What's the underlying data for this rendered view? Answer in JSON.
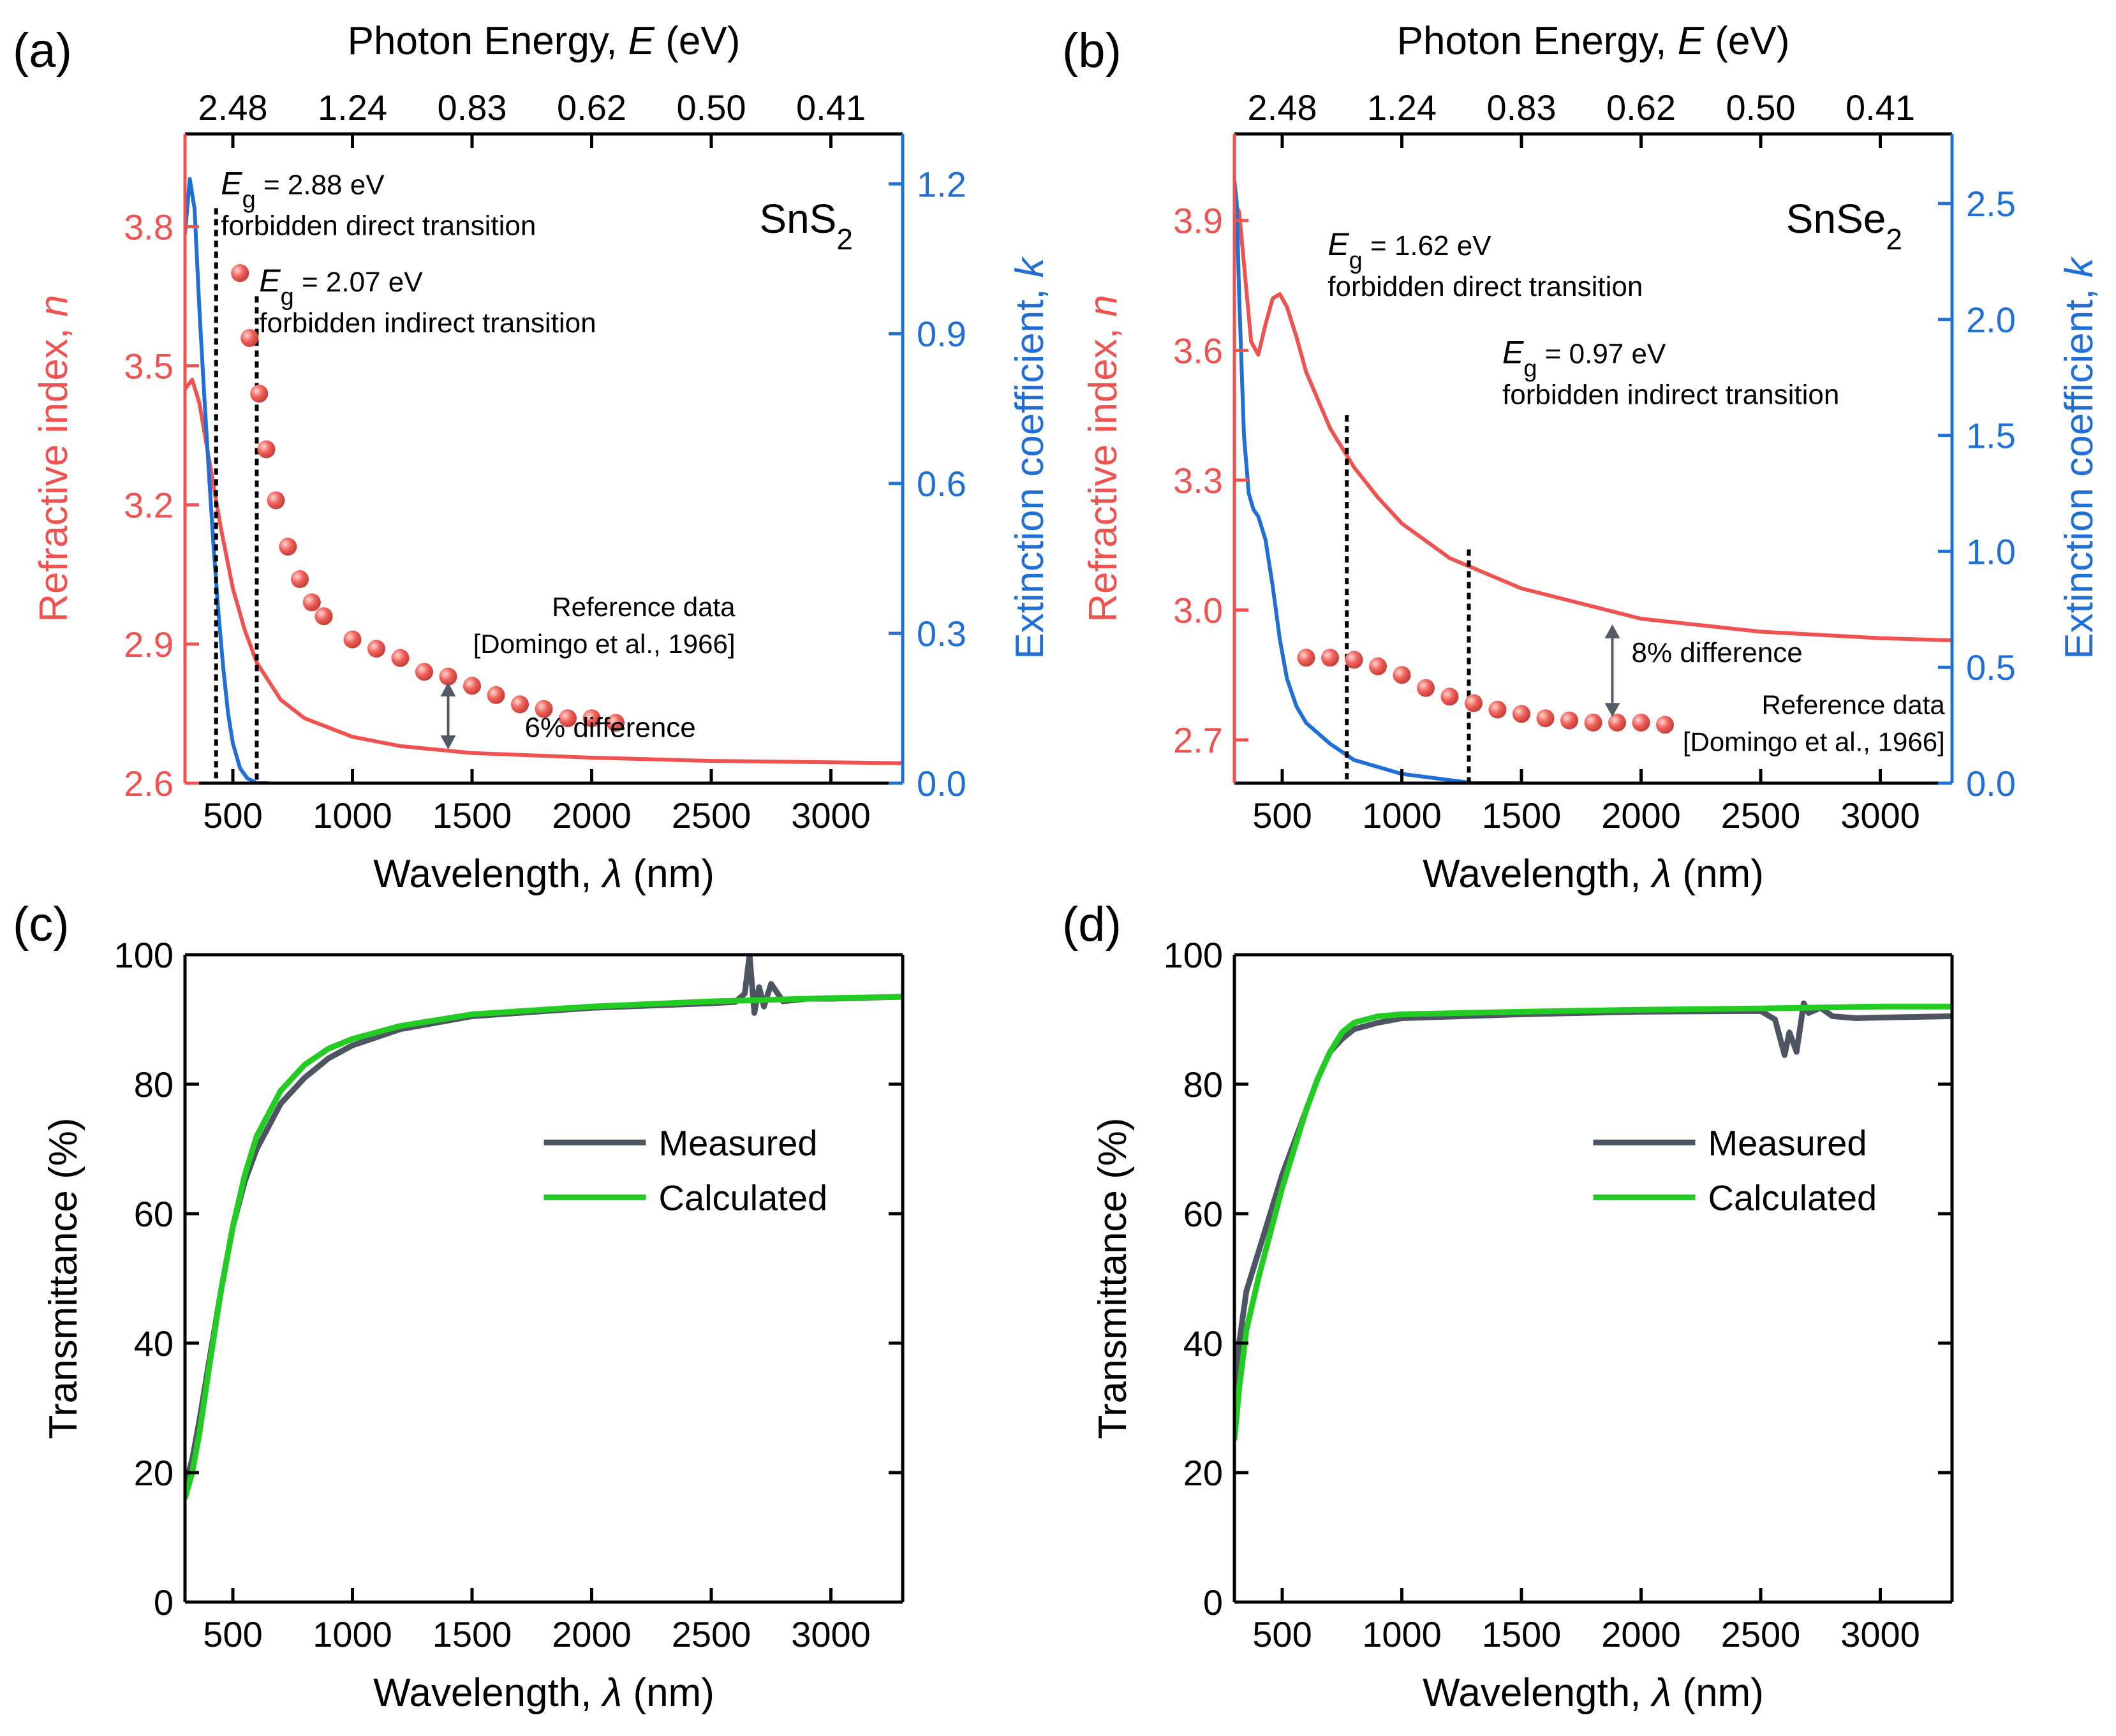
{
  "figure": {
    "colors": {
      "n": "#ef5350",
      "k": "#1f6fd6",
      "points": "#f0605a",
      "measured": "#4d5563",
      "calculated": "#22cc22",
      "axis": "#000000",
      "arrow": "#555a66"
    }
  },
  "chart_data": [
    {
      "panel": "a",
      "panel_label": "(a)",
      "type": "line",
      "material_prefix": "SnS",
      "material_sub": "2",
      "xlabel_prefix": "Wavelength, ",
      "xlabel_symbol": "λ",
      "xlabel_suffix": " (nm)",
      "xlim": [
        300,
        3300
      ],
      "xticks": [
        500,
        1000,
        1500,
        2000,
        2500,
        3000
      ],
      "top_label_prefix": "Photon Energy, ",
      "top_label_symbol": "E",
      "top_label_suffix": " (eV)",
      "top_ticks": [
        {
          "label": "2.48",
          "x": 500
        },
        {
          "label": "1.24",
          "x": 1000
        },
        {
          "label": "0.83",
          "x": 1500
        },
        {
          "label": "0.62",
          "x": 2000
        },
        {
          "label": "0.50",
          "x": 2500
        },
        {
          "label": "0.41",
          "x": 3000
        }
      ],
      "ylabel_left_prefix": "Refractive index, ",
      "ylabel_left_symbol": "n",
      "ylim_left": [
        2.6,
        4.0
      ],
      "yticks_left": [
        2.6,
        2.9,
        3.2,
        3.5,
        3.8
      ],
      "ytick_left_labels": [
        "2.6",
        "2.9",
        "3.2",
        "3.5",
        "3.8"
      ],
      "ylabel_right_prefix": "Extinction coefficient, ",
      "ylabel_right_symbol": "k",
      "ylim_right": [
        0,
        1.3
      ],
      "yticks_right": [
        0,
        0.3,
        0.6,
        0.9,
        1.2
      ],
      "ytick_right_labels": [
        "0.0",
        "0.3",
        "0.6",
        "0.9",
        "1.2"
      ],
      "n_curve": {
        "x": [
          300,
          330,
          360,
          400,
          450,
          500,
          550,
          600,
          700,
          800,
          1000,
          1200,
          1500,
          2000,
          2500,
          3000,
          3300
        ],
        "y": [
          3.45,
          3.47,
          3.42,
          3.3,
          3.15,
          3.02,
          2.93,
          2.86,
          2.78,
          2.74,
          2.7,
          2.68,
          2.665,
          2.655,
          2.648,
          2.645,
          2.643
        ]
      },
      "k_curve": {
        "x": [
          300,
          320,
          340,
          360,
          380,
          400,
          420,
          440,
          460,
          480,
          500,
          530,
          560,
          600,
          650
        ],
        "y": [
          1.1,
          1.21,
          1.15,
          0.95,
          0.78,
          0.62,
          0.47,
          0.34,
          0.23,
          0.14,
          0.08,
          0.03,
          0.01,
          0.0,
          0.0
        ]
      },
      "reference_points": {
        "x": [
          530,
          570,
          610,
          640,
          680,
          730,
          780,
          830,
          880,
          1000,
          1100,
          1200,
          1300,
          1400,
          1500,
          1600,
          1700,
          1800,
          1900,
          2000,
          2100
        ],
        "y": [
          3.7,
          3.56,
          3.44,
          3.32,
          3.21,
          3.11,
          3.04,
          2.99,
          2.96,
          2.91,
          2.89,
          2.87,
          2.84,
          2.83,
          2.81,
          2.79,
          2.77,
          2.76,
          2.74,
          2.74,
          2.73
        ]
      },
      "gap_lines": [
        {
          "x": 430,
          "y_top": 3.84
        },
        {
          "x": 600,
          "y_top": 3.65
        }
      ],
      "annotations": [
        {
          "kind": "eg",
          "value": " = 2.88 eV",
          "line2": "forbidden direct transition",
          "x": 450,
          "y": 3.87
        },
        {
          "kind": "eg",
          "value": " = 2.07 eV",
          "line2": "forbidden indirect transition",
          "x": 610,
          "y": 3.66
        },
        {
          "kind": "ref",
          "line1": "Reference data",
          "line2": "[Domingo et al., 1966]",
          "x": 2600,
          "y": 2.96
        },
        {
          "kind": "diff",
          "line1": "6% difference",
          "x": 1720,
          "y": 2.7
        }
      ],
      "diff_arrow": {
        "x": 1400,
        "y_from": 2.82,
        "y_to": 2.67
      }
    },
    {
      "panel": "b",
      "panel_label": "(b)",
      "type": "line",
      "material_prefix": "SnSe",
      "material_sub": "2",
      "xlabel_prefix": "Wavelength, ",
      "xlabel_symbol": "λ",
      "xlabel_suffix": " (nm)",
      "xlim": [
        300,
        3300
      ],
      "xticks": [
        500,
        1000,
        1500,
        2000,
        2500,
        3000
      ],
      "top_label_prefix": "Photon Energy, ",
      "top_label_symbol": "E",
      "top_label_suffix": " (eV)",
      "top_ticks": [
        {
          "label": "2.48",
          "x": 500
        },
        {
          "label": "1.24",
          "x": 1000
        },
        {
          "label": "0.83",
          "x": 1500
        },
        {
          "label": "0.62",
          "x": 2000
        },
        {
          "label": "0.50",
          "x": 2500
        },
        {
          "label": "0.41",
          "x": 3000
        }
      ],
      "ylabel_left_prefix": "Refractive index, ",
      "ylabel_left_symbol": "n",
      "ylim_left": [
        2.6,
        4.1
      ],
      "yticks_left": [
        2.7,
        3.0,
        3.3,
        3.6,
        3.9
      ],
      "ytick_left_labels": [
        "2.7",
        "3.0",
        "3.3",
        "3.6",
        "3.9"
      ],
      "ylabel_right_prefix": "Extinction coefficient, ",
      "ylabel_right_symbol": "k",
      "ylim_right": [
        0,
        2.8
      ],
      "yticks_right": [
        0,
        0.5,
        1.0,
        1.5,
        2.0,
        2.5
      ],
      "ytick_right_labels": [
        "0.0",
        "0.5",
        "1.0",
        "1.5",
        "2.0",
        "2.5"
      ],
      "n_curve": {
        "x": [
          300,
          320,
          340,
          370,
          400,
          430,
          460,
          490,
          520,
          560,
          600,
          700,
          800,
          900,
          1000,
          1200,
          1500,
          2000,
          2500,
          3000,
          3300
        ],
        "y": [
          3.94,
          3.92,
          3.8,
          3.62,
          3.59,
          3.66,
          3.72,
          3.73,
          3.7,
          3.63,
          3.55,
          3.42,
          3.33,
          3.26,
          3.2,
          3.12,
          3.05,
          2.98,
          2.95,
          2.935,
          2.93
        ]
      },
      "k_curve": {
        "x": [
          300,
          310,
          320,
          340,
          360,
          380,
          400,
          430,
          460,
          490,
          520,
          560,
          600,
          700,
          800,
          1000,
          1300,
          1500
        ],
        "y": [
          2.6,
          2.5,
          2.1,
          1.5,
          1.25,
          1.18,
          1.15,
          1.05,
          0.85,
          0.62,
          0.45,
          0.33,
          0.26,
          0.17,
          0.1,
          0.04,
          0.0,
          0.0
        ]
      },
      "reference_points": {
        "x": [
          600,
          700,
          800,
          900,
          1000,
          1100,
          1200,
          1300,
          1400,
          1500,
          1600,
          1700,
          1800,
          1900,
          2000,
          2100
        ],
        "y": [
          2.89,
          2.89,
          2.885,
          2.87,
          2.85,
          2.82,
          2.8,
          2.785,
          2.77,
          2.76,
          2.75,
          2.745,
          2.74,
          2.74,
          2.74,
          2.735
        ]
      },
      "gap_lines": [
        {
          "x": 770,
          "y_top": 3.45
        },
        {
          "x": 1280,
          "y_top": 3.14
        }
      ],
      "annotations": [
        {
          "kind": "eg",
          "value": " = 1.62 eV",
          "line2": "forbidden direct transition",
          "x": 690,
          "y": 3.82
        },
        {
          "kind": "eg",
          "value": " = 0.97 eV",
          "line2": "forbidden indirect transition",
          "x": 1420,
          "y": 3.57
        },
        {
          "kind": "diff",
          "line1": "8% difference",
          "x": 1960,
          "y": 2.88
        },
        {
          "kind": "ref",
          "line1": "Reference data",
          "line2": "[Domingo et al., 1966]",
          "x": 3270,
          "y": 2.76
        }
      ],
      "diff_arrow": {
        "x": 1880,
        "y_from": 2.97,
        "y_to": 2.75
      }
    },
    {
      "panel": "c",
      "panel_label": "(c)",
      "type": "line",
      "xlabel_prefix": "Wavelength, ",
      "xlabel_symbol": "λ",
      "xlabel_suffix": " (nm)",
      "ylabel": "Transmittance (%)",
      "xlim": [
        300,
        3300
      ],
      "ylim": [
        0,
        100
      ],
      "xticks": [
        500,
        1000,
        1500,
        2000,
        2500,
        3000
      ],
      "yticks": [
        0,
        20,
        40,
        60,
        80,
        100
      ],
      "legend_position": "center-right",
      "series": [
        {
          "name": "Measured",
          "color": "#4d5563",
          "x": [
            300,
            330,
            360,
            400,
            450,
            500,
            550,
            600,
            700,
            800,
            900,
            1000,
            1200,
            1500,
            2000,
            2500,
            2600,
            2640,
            2660,
            2680,
            2700,
            2720,
            2750,
            2800,
            2900,
            3000,
            3300
          ],
          "y": [
            18,
            22,
            28,
            37,
            48,
            58,
            65,
            70,
            77,
            81,
            84,
            86,
            88.5,
            90.5,
            91.8,
            92.5,
            92.7,
            94,
            100,
            91,
            95,
            92,
            95.5,
            92.8,
            93.2,
            93.2,
            93.5
          ]
        },
        {
          "name": "Calculated",
          "color": "#22cc22",
          "x": [
            300,
            330,
            360,
            400,
            450,
            500,
            550,
            600,
            700,
            800,
            900,
            1000,
            1200,
            1500,
            2000,
            2500,
            3000,
            3300
          ],
          "y": [
            16,
            20,
            26,
            36,
            48,
            58,
            66,
            72,
            79,
            83,
            85.5,
            87,
            89,
            90.8,
            92,
            92.8,
            93.3,
            93.5
          ]
        }
      ]
    },
    {
      "panel": "d",
      "panel_label": "(d)",
      "type": "line",
      "xlabel_prefix": "Wavelength, ",
      "xlabel_symbol": "λ",
      "xlabel_suffix": " (nm)",
      "ylabel": "Transmittance (%)",
      "xlim": [
        300,
        3300
      ],
      "ylim": [
        0,
        100
      ],
      "xticks": [
        500,
        1000,
        1500,
        2000,
        2500,
        3000
      ],
      "yticks": [
        0,
        20,
        40,
        60,
        80,
        100
      ],
      "legend_position": "center-right",
      "series": [
        {
          "name": "Measured",
          "color": "#4d5563",
          "x": [
            300,
            320,
            350,
            400,
            450,
            500,
            550,
            600,
            650,
            700,
            750,
            800,
            900,
            1000,
            1500,
            2000,
            2500,
            2560,
            2600,
            2620,
            2650,
            2680,
            2700,
            2750,
            2800,
            2900,
            3000,
            3300
          ],
          "y": [
            30,
            40,
            48,
            54,
            60,
            66,
            71,
            76,
            81,
            85,
            87,
            88.5,
            89.5,
            90.2,
            90.8,
            91.2,
            91.3,
            90,
            84.5,
            88,
            85,
            92.5,
            91,
            91.8,
            90.5,
            90.2,
            90.3,
            90.5
          ]
        },
        {
          "name": "Calculated",
          "color": "#22cc22",
          "x": [
            300,
            320,
            350,
            400,
            450,
            500,
            550,
            600,
            650,
            700,
            750,
            800,
            900,
            1000,
            1500,
            2000,
            2500,
            3000,
            3300
          ],
          "y": [
            25,
            33,
            42,
            50,
            57,
            64,
            70,
            76,
            81,
            85,
            88,
            89.5,
            90.5,
            90.8,
            91.2,
            91.5,
            91.7,
            92,
            92
          ]
        }
      ]
    }
  ]
}
